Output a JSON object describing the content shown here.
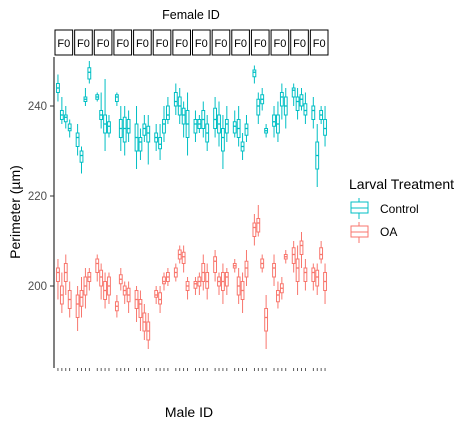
{
  "chart_data": {
    "type": "boxplot",
    "facet_title": "Female ID",
    "facet_labels": [
      "F0",
      "F0",
      "F0",
      "F0",
      "F0",
      "F0",
      "F0",
      "F0",
      "F0",
      "F0",
      "F0",
      "F0",
      "F0",
      "F0"
    ],
    "xlabel": "Male ID",
    "ylabel": "Perimeter (µm)",
    "yticks": [
      200,
      220,
      240
    ],
    "ylim": [
      184,
      252
    ],
    "grid": false,
    "legend": {
      "title": "Larval Treatment",
      "position": "right",
      "items": [
        {
          "label": "Control",
          "color": "#00BFC4"
        },
        {
          "label": "OA",
          "color": "#F8766D"
        }
      ]
    },
    "categories_per_facet": [
      4,
      4,
      4,
      4,
      4,
      4,
      4,
      4,
      4,
      4,
      4,
      4,
      4,
      4
    ],
    "series": [
      {
        "name": "Control",
        "color": "#00BFC4",
        "boxes": [
          [
            241,
            243,
            244,
            245,
            247
          ],
          [
            236,
            237,
            238,
            239,
            242
          ],
          [
            235,
            236.5,
            237.5,
            238,
            240
          ],
          [
            233,
            234.5,
            235,
            236,
            237
          ],
          [
            229,
            231,
            233,
            234,
            236
          ],
          [
            225,
            227.5,
            229,
            230,
            231
          ],
          [
            240,
            241,
            241.5,
            242,
            244
          ],
          [
            245,
            246,
            247.5,
            248.5,
            250
          ],
          [
            241,
            241.5,
            242,
            242.5,
            243
          ],
          [
            235,
            237,
            238,
            239,
            243
          ],
          [
            230,
            234,
            236,
            238,
            246
          ],
          [
            233,
            234,
            235.5,
            236.5,
            238
          ],
          [
            240,
            241,
            242,
            242.5,
            243
          ],
          [
            230,
            233,
            235,
            237,
            240
          ],
          [
            229,
            232,
            235,
            237.5,
            240
          ],
          [
            232,
            234,
            235,
            237,
            239
          ],
          [
            226,
            230,
            233,
            236,
            240
          ],
          [
            228,
            230,
            232,
            233,
            235
          ],
          [
            232,
            233.5,
            235,
            236,
            238
          ],
          [
            227,
            232,
            234,
            235.5,
            238
          ],
          [
            230,
            232,
            233,
            234,
            236
          ],
          [
            228,
            230.5,
            231.5,
            233,
            236
          ],
          [
            232,
            234,
            236,
            237,
            240
          ],
          [
            236,
            237,
            238,
            240,
            242
          ],
          [
            238,
            240,
            241,
            243,
            245
          ],
          [
            236,
            238,
            240,
            242,
            244
          ],
          [
            233,
            236,
            238,
            239.5,
            241
          ],
          [
            229,
            233,
            236,
            239,
            243
          ],
          [
            232,
            234,
            236,
            237,
            239
          ],
          [
            234,
            235,
            236,
            237,
            238
          ],
          [
            233,
            235,
            237,
            239,
            241
          ],
          [
            230,
            232,
            234,
            236,
            238
          ],
          [
            233,
            235,
            237,
            239.5,
            242
          ],
          [
            231,
            234,
            236,
            238,
            241
          ],
          [
            226,
            230,
            233,
            235,
            238
          ],
          [
            232,
            234,
            236,
            237,
            240
          ],
          [
            233,
            234,
            235.5,
            236.5,
            239
          ],
          [
            231,
            233,
            235,
            237,
            240
          ],
          [
            228,
            230,
            231,
            232,
            234
          ],
          [
            232,
            233.5,
            235,
            236,
            238
          ],
          [
            245,
            246.5,
            247.5,
            248,
            249
          ],
          [
            236,
            238,
            240,
            241.5,
            243
          ],
          [
            239,
            240.5,
            241.5,
            242.5,
            244
          ],
          [
            233,
            234,
            234.5,
            235,
            236
          ],
          [
            233,
            235.5,
            236.5,
            238,
            240
          ],
          [
            232,
            234,
            236,
            238,
            241
          ],
          [
            237,
            240,
            242,
            243,
            245
          ],
          [
            235,
            238,
            240,
            242,
            244
          ],
          [
            240,
            242,
            243.5,
            244,
            245
          ],
          [
            237,
            239,
            241,
            242,
            244
          ],
          [
            239,
            240,
            241.5,
            242.5,
            244
          ],
          [
            236,
            238,
            239,
            240.5,
            243
          ],
          [
            235,
            237,
            239,
            240,
            242
          ],
          [
            222,
            226,
            229,
            232,
            236
          ],
          [
            236,
            237,
            238,
            239,
            240
          ],
          [
            231,
            233.5,
            235,
            237,
            240
          ],
          [
            240,
            242,
            244,
            245,
            246
          ],
          [
            238,
            239.5,
            240,
            240.5,
            242
          ],
          [
            237,
            238,
            239.5,
            240.5,
            243
          ],
          [
            238,
            239.5,
            241,
            242,
            243
          ]
        ]
      },
      {
        "name": "OA",
        "color": "#F8766D",
        "boxes": [
          [
            197,
            201,
            203,
            204,
            206
          ],
          [
            194,
            196,
            198,
            200,
            203
          ],
          [
            198,
            201,
            203,
            205,
            207
          ],
          [
            193,
            195,
            197,
            199,
            201
          ],
          [
            190,
            193,
            196,
            198,
            200
          ],
          [
            193,
            195.5,
            197.5,
            199,
            202
          ],
          [
            195,
            198,
            200,
            202,
            204
          ],
          [
            199,
            201,
            202,
            203,
            204
          ],
          [
            201,
            203,
            205,
            206,
            207
          ],
          [
            197,
            200,
            202,
            203.5,
            205
          ],
          [
            195,
            197,
            199,
            201,
            203
          ],
          [
            196,
            198,
            200,
            202,
            203
          ],
          [
            193,
            194.5,
            195.5,
            196.5,
            198
          ],
          [
            199,
            200.5,
            201.5,
            202.5,
            204
          ],
          [
            196,
            198,
            199,
            200,
            201
          ],
          [
            194,
            196.5,
            198,
            199.5,
            201
          ],
          [
            192,
            195,
            197,
            199,
            200
          ],
          [
            190,
            193,
            196,
            197,
            199
          ],
          [
            188,
            190,
            192,
            194,
            196
          ],
          [
            186,
            188,
            190,
            192,
            194
          ],
          [
            196,
            197.5,
            198,
            199,
            200
          ],
          [
            194,
            196,
            197,
            198.5,
            200
          ],
          [
            199,
            200.5,
            201,
            202,
            203
          ],
          [
            200,
            201,
            202,
            203,
            204
          ],
          [
            201,
            202,
            203,
            204,
            205
          ],
          [
            205,
            206,
            207,
            208,
            209
          ],
          [
            203,
            205,
            206.5,
            207.5,
            209
          ],
          [
            197,
            199,
            200,
            201,
            202
          ],
          [
            198,
            199.5,
            200.5,
            201,
            202
          ],
          [
            198,
            200,
            201,
            202,
            203
          ],
          [
            199,
            201,
            203,
            205,
            207
          ],
          [
            197,
            199.5,
            201,
            203,
            205
          ],
          [
            201,
            203,
            205.5,
            206.5,
            208
          ],
          [
            198,
            200,
            201,
            202,
            203
          ],
          [
            196,
            199,
            201,
            203,
            205
          ],
          [
            198,
            200,
            202,
            203,
            204
          ],
          [
            203,
            204,
            204.5,
            205,
            206
          ],
          [
            196,
            198,
            200,
            202,
            204
          ],
          [
            194,
            197,
            199,
            201,
            203
          ],
          [
            200,
            202,
            204,
            205.5,
            208
          ],
          [
            209,
            211,
            213,
            214,
            216
          ],
          [
            211,
            212,
            214,
            215,
            218
          ],
          [
            203,
            204,
            205,
            206,
            207
          ],
          [
            186,
            190,
            193,
            195,
            198
          ],
          [
            200,
            202,
            204,
            205,
            207
          ],
          [
            195,
            196.5,
            198,
            199,
            201
          ],
          [
            197,
            198.5,
            199.5,
            200.5,
            202
          ],
          [
            205,
            206,
            206.5,
            207,
            208
          ],
          [
            203,
            205,
            207,
            208.5,
            210
          ],
          [
            198,
            201,
            204,
            206,
            209
          ],
          [
            204,
            207,
            209,
            210,
            212
          ],
          [
            199,
            201,
            203,
            204,
            206
          ],
          [
            199,
            201,
            203,
            204,
            205
          ],
          [
            198,
            200,
            202,
            203.5,
            205
          ],
          [
            205,
            206,
            207,
            208.5,
            210
          ],
          [
            196,
            199,
            201,
            203,
            205
          ],
          [
            198,
            200,
            201.5,
            203,
            205
          ],
          [
            200,
            202,
            203,
            204.5,
            206
          ],
          [
            197,
            199,
            201,
            202,
            204
          ],
          [
            198,
            200,
            202,
            203,
            205
          ]
        ]
      }
    ]
  }
}
